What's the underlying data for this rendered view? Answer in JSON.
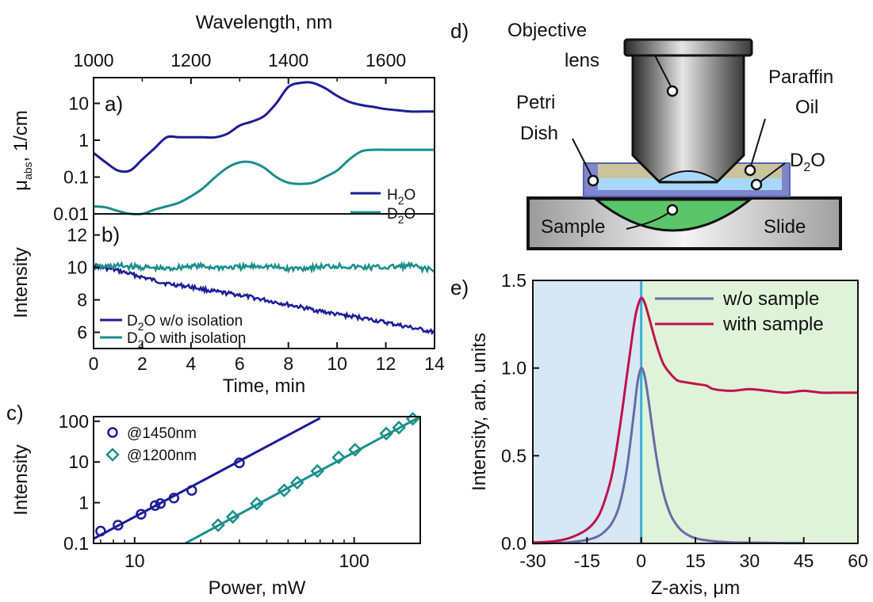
{
  "panels": {
    "a": "a)",
    "b": "b)",
    "c": "c)",
    "d": "d)",
    "e": "e)"
  },
  "chart_data": [
    {
      "id": "a",
      "type": "line",
      "xlabel": "Wavelength, nm",
      "ylabel": "μabs, 1/cm",
      "ylabel_main": "μ",
      "ylabel_sub": "abs",
      "ylabel_tail": ", 1/cm",
      "xlim": [
        1000,
        1700
      ],
      "ylim": [
        0.01,
        50
      ],
      "yscale": "log",
      "xticks": [
        1000,
        1200,
        1400,
        1600
      ],
      "yticks": [
        0.01,
        0.1,
        1,
        10
      ],
      "ytick_labels": [
        "0.01",
        "0.1",
        "1",
        "10"
      ],
      "legend_position": "bottom-right",
      "series": [
        {
          "name": "H2O",
          "label_main": "H",
          "label_sub": "2",
          "label_tail": "O",
          "color": "#1c1c96",
          "x": [
            1000,
            1025,
            1050,
            1075,
            1100,
            1125,
            1150,
            1175,
            1200,
            1225,
            1250,
            1275,
            1300,
            1325,
            1350,
            1375,
            1400,
            1425,
            1450,
            1475,
            1500,
            1525,
            1550,
            1575,
            1600,
            1625,
            1650,
            1675,
            1700
          ],
          "y": [
            0.45,
            0.25,
            0.15,
            0.15,
            0.3,
            0.6,
            1.2,
            1.2,
            1.2,
            1.2,
            1.2,
            1.5,
            2.5,
            3.2,
            4.5,
            10,
            28,
            36,
            36,
            26,
            16,
            11,
            9,
            8,
            7,
            6.5,
            6,
            6,
            6
          ]
        },
        {
          "name": "D2O",
          "label_main": "D",
          "label_sub": "2",
          "label_tail": "O",
          "color": "#1a8f8a",
          "x": [
            1000,
            1025,
            1050,
            1075,
            1100,
            1125,
            1150,
            1175,
            1200,
            1225,
            1250,
            1275,
            1300,
            1325,
            1350,
            1375,
            1400,
            1425,
            1450,
            1475,
            1500,
            1525,
            1550,
            1575,
            1600,
            1625,
            1650,
            1675,
            1700
          ],
          "y": [
            0.016,
            0.015,
            0.012,
            0.01,
            0.01,
            0.013,
            0.016,
            0.02,
            0.03,
            0.05,
            0.1,
            0.18,
            0.25,
            0.25,
            0.18,
            0.1,
            0.07,
            0.065,
            0.07,
            0.1,
            0.15,
            0.3,
            0.5,
            0.55,
            0.55,
            0.55,
            0.55,
            0.55,
            0.55
          ]
        }
      ]
    },
    {
      "id": "b",
      "type": "line",
      "xlabel": "Time, min",
      "ylabel": "Intensity",
      "xlim": [
        0,
        14
      ],
      "ylim": [
        5,
        13.3
      ],
      "xticks": [
        0,
        2,
        4,
        6,
        8,
        10,
        12,
        14
      ],
      "yticks": [
        6,
        8,
        10,
        12
      ],
      "legend_position": "bottom-left",
      "series": [
        {
          "name": "D2O w/o isolation",
          "label_main": "D",
          "label_sub": "2",
          "label_tail": "O w/o isolation",
          "color": "#1c1c96",
          "x": [
            0,
            1,
            2,
            3,
            4,
            5,
            6,
            7,
            8,
            9,
            10,
            11,
            12,
            13,
            14
          ],
          "y": [
            10.1,
            9.8,
            9.4,
            9.0,
            8.8,
            8.5,
            8.3,
            8.0,
            7.7,
            7.4,
            7.1,
            6.9,
            6.6,
            6.3,
            6.0
          ]
        },
        {
          "name": "D2O with isolation",
          "label_main": "D",
          "label_sub": "2",
          "label_tail": "O with isolation",
          "color": "#1a8f8a",
          "x": [
            0,
            1,
            2,
            3,
            4,
            5,
            6,
            7,
            8,
            9,
            10,
            11,
            12,
            13,
            14
          ],
          "y": [
            10.0,
            10.1,
            10.0,
            9.9,
            10.1,
            10.0,
            10.0,
            10.1,
            9.9,
            10.0,
            10.1,
            10.0,
            10.0,
            10.1,
            9.8
          ]
        }
      ]
    },
    {
      "id": "c",
      "type": "scatter",
      "xlabel": "Power, mW",
      "ylabel": "Intensity",
      "xscale": "log",
      "yscale": "log",
      "xlim": [
        6.5,
        200
      ],
      "ylim": [
        0.1,
        130
      ],
      "xticks": [
        10,
        100
      ],
      "yticks": [
        0.1,
        1,
        10,
        100
      ],
      "ytick_labels": [
        "0.1",
        "1",
        "10",
        "100"
      ],
      "legend_position": "top-left",
      "series": [
        {
          "name": "@1450nm",
          "marker": "circle",
          "color": "#1c1c96",
          "x": [
            7,
            8.4,
            10.7,
            12.4,
            13.1,
            15.1,
            18.2,
            30
          ],
          "y": [
            0.2,
            0.28,
            0.52,
            0.85,
            0.95,
            1.3,
            2.0,
            9.5
          ],
          "fit": {
            "x": [
              6.5,
              70
            ],
            "y": [
              0.13,
              120
            ]
          }
        },
        {
          "name": "@1200nm",
          "marker": "diamond",
          "color": "#1a8f8a",
          "x": [
            24,
            28,
            36,
            48,
            55,
            68,
            85,
            101,
            140,
            160,
            185
          ],
          "y": [
            0.28,
            0.45,
            0.95,
            2.0,
            3.1,
            6.0,
            13,
            20,
            50,
            70,
            115
          ],
          "fit": {
            "x": [
              17,
              200
            ],
            "y": [
              0.1,
              130
            ]
          }
        }
      ]
    },
    {
      "id": "e",
      "type": "line",
      "xlabel": "Z-axis, μm",
      "ylabel": "Intensity, arb. units",
      "xlim": [
        -30,
        60
      ],
      "ylim": [
        0,
        1.5
      ],
      "xticks": [
        -30,
        -15,
        0,
        15,
        30,
        45,
        60
      ],
      "yticks": [
        0.0,
        0.5,
        1.0,
        1.5
      ],
      "ytick_labels": [
        "0.0",
        "0.5",
        "1.0",
        "1.5"
      ],
      "legend_position": "top-right",
      "regions": [
        {
          "x": [
            -30,
            0
          ],
          "color": "#d5e8f3"
        },
        {
          "x": [
            0,
            60
          ],
          "color": "#dff3d8"
        }
      ],
      "vline": {
        "x": 0,
        "color": "#3aaed8"
      },
      "series": [
        {
          "name": "w/o sample",
          "color": "#6a6aa8",
          "x": [
            -30,
            -25,
            -20,
            -15,
            -12,
            -10,
            -8,
            -6,
            -4,
            -2,
            -1,
            0,
            1,
            2,
            4,
            6,
            8,
            10,
            12,
            15,
            20,
            25,
            30,
            35,
            40,
            45
          ],
          "y": [
            0,
            0.002,
            0.006,
            0.02,
            0.04,
            0.07,
            0.12,
            0.22,
            0.42,
            0.75,
            0.92,
            1.0,
            0.95,
            0.82,
            0.52,
            0.3,
            0.17,
            0.1,
            0.06,
            0.03,
            0.012,
            0.006,
            0.004,
            0.003,
            0.002,
            0.002
          ]
        },
        {
          "name": "with sample",
          "color": "#c0124f",
          "x": [
            -30,
            -25,
            -20,
            -15,
            -12,
            -10,
            -8,
            -6,
            -4,
            -2,
            -1,
            0,
            1,
            2,
            4,
            6,
            8,
            10,
            12,
            15,
            18,
            20,
            25,
            30,
            35,
            40,
            45,
            50,
            55,
            60
          ],
          "y": [
            0.005,
            0.01,
            0.03,
            0.08,
            0.15,
            0.25,
            0.4,
            0.65,
            0.95,
            1.25,
            1.35,
            1.4,
            1.37,
            1.3,
            1.15,
            1.03,
            0.97,
            0.93,
            0.92,
            0.91,
            0.9,
            0.88,
            0.87,
            0.88,
            0.87,
            0.86,
            0.87,
            0.86,
            0.86,
            0.86
          ]
        }
      ]
    }
  ],
  "diagram": {
    "objective_label_1": "Objective",
    "objective_label_2": "lens",
    "paraffin_label_1": "Paraffin",
    "paraffin_label_2": "Oil",
    "petri_label_1": "Petri",
    "petri_label_2": "Dish",
    "d2o_main": "D",
    "d2o_sub": "2",
    "d2o_tail": "O",
    "sample_label": "Sample",
    "slide_label": "Slide"
  }
}
